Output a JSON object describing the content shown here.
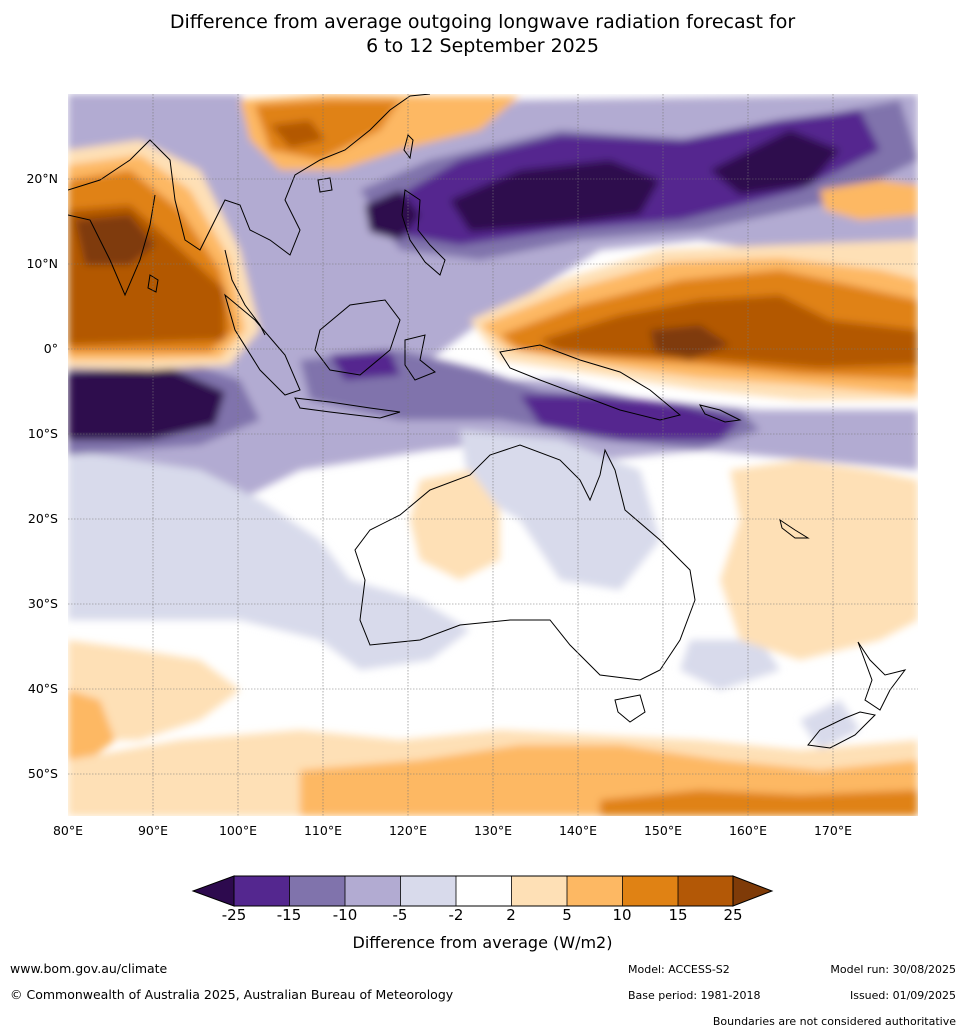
{
  "title_line1": "Difference from average outgoing longwave radiation forecast for",
  "title_line2": "6 to 12 September 2025",
  "map": {
    "lat_labels": [
      "20°N",
      "10°N",
      "0°",
      "10°S",
      "20°S",
      "30°S",
      "40°S",
      "50°S"
    ],
    "lon_labels": [
      "80°E",
      "90°E",
      "100°E",
      "110°E",
      "120°E",
      "130°E",
      "140°E",
      "150°E",
      "160°E",
      "170°E"
    ]
  },
  "legend": {
    "ticks": [
      "-25",
      "-15",
      "-10",
      "-5",
      "-2",
      "2",
      "5",
      "10",
      "15",
      "25"
    ],
    "colors": [
      "#2d0a4e",
      "#54278f",
      "#8073ac",
      "#b2abd2",
      "#d8daeb",
      "#ffffff",
      "#fee0b6",
      "#fdb863",
      "#e08214",
      "#b35806",
      "#7f3b08"
    ],
    "title": "Difference from average (W/m2)"
  },
  "footer": {
    "website": "www.bom.gov.au/climate",
    "copyright": "© Commonwealth of Australia 2025, Australian Bureau of Meteorology",
    "model": "Model: ACCESS-S2",
    "base_period": "Base period: 1981-2018",
    "model_run": "Model run: 30/08/2025",
    "issued": "Issued: 01/09/2025",
    "disclaimer": "Boundaries are not considered authoritative"
  }
}
